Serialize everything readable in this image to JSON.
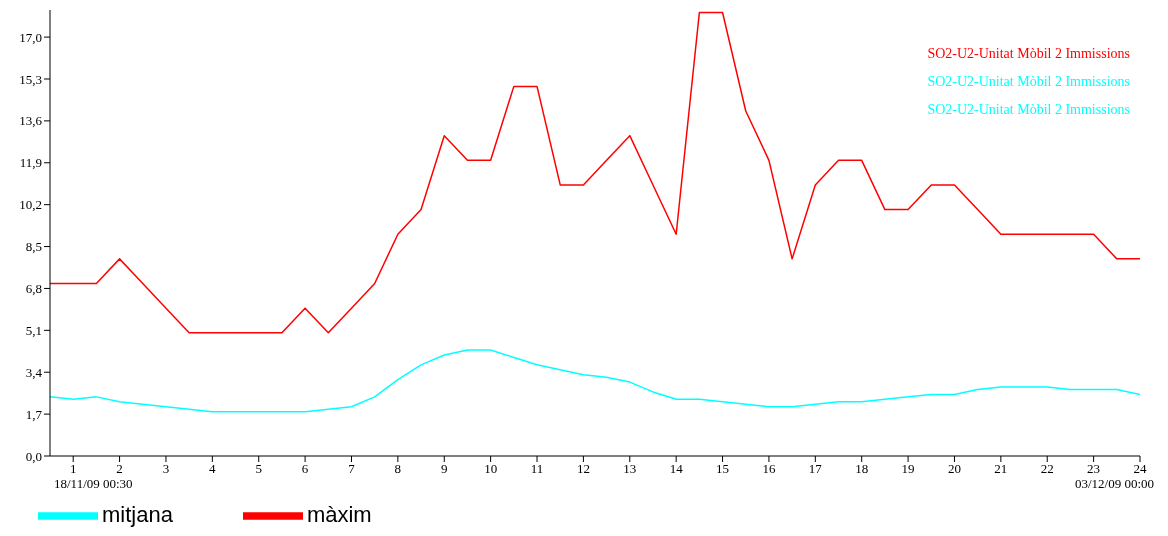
{
  "chart_data": {
    "type": "line",
    "x": [
      0.5,
      1,
      1.5,
      2,
      2.5,
      3,
      3.5,
      4,
      4.5,
      5,
      5.5,
      6,
      6.5,
      7,
      7.5,
      8,
      8.5,
      9,
      9.5,
      10,
      10.5,
      11,
      11.5,
      12,
      12.5,
      13,
      13.5,
      14,
      14.5,
      15,
      15.5,
      16,
      16.5,
      17,
      17.5,
      18,
      18.5,
      19,
      19.5,
      20,
      20.5,
      21,
      21.5,
      22,
      22.5,
      23,
      23.5,
      24
    ],
    "series": [
      {
        "name": "màxim",
        "color": "#ff0000",
        "values": [
          7,
          7,
          7,
          8,
          7,
          6,
          5,
          5,
          5,
          5,
          5,
          6,
          5,
          6,
          7,
          9,
          10,
          13,
          12,
          12,
          15,
          15,
          11,
          11,
          12,
          13,
          11,
          9,
          18,
          18,
          14,
          12,
          8,
          11,
          12,
          12,
          10,
          10,
          11,
          11,
          10,
          9,
          9,
          9,
          9,
          9,
          8,
          8
        ]
      },
      {
        "name": "mitjana",
        "color": "#00ffff",
        "values": [
          2.4,
          2.3,
          2.4,
          2.2,
          2.1,
          2.0,
          1.9,
          1.8,
          1.8,
          1.8,
          1.8,
          1.8,
          1.9,
          2.0,
          2.4,
          3.1,
          3.7,
          4.1,
          4.3,
          4.3,
          4.0,
          3.7,
          3.5,
          3.3,
          3.2,
          3.0,
          2.6,
          2.3,
          2.3,
          2.2,
          2.1,
          2.0,
          2.0,
          2.1,
          2.2,
          2.2,
          2.3,
          2.4,
          2.5,
          2.5,
          2.7,
          2.8,
          2.8,
          2.8,
          2.7,
          2.7,
          2.7,
          2.5
        ]
      }
    ],
    "xlim": [
      0.5,
      24
    ],
    "xticks": [
      1,
      2,
      3,
      4,
      5,
      6,
      7,
      8,
      9,
      10,
      11,
      12,
      13,
      14,
      15,
      16,
      17,
      18,
      19,
      20,
      21,
      22,
      23,
      24
    ],
    "ylim": [
      0,
      18.1
    ],
    "yticks": [
      {
        "value": 0,
        "label": "0,0"
      },
      {
        "value": 1.7,
        "label": "1,7"
      },
      {
        "value": 3.4,
        "label": "3,4"
      },
      {
        "value": 5.1,
        "label": "5,1"
      },
      {
        "value": 6.8,
        "label": "6,8"
      },
      {
        "value": 8.5,
        "label": "8,5"
      },
      {
        "value": 10.2,
        "label": "10,2"
      },
      {
        "value": 11.9,
        "label": "11,9"
      },
      {
        "value": 13.6,
        "label": "13,6"
      },
      {
        "value": 15.3,
        "label": "15,3"
      },
      {
        "value": 17,
        "label": "17,0"
      }
    ],
    "annotations": [
      "SO2-U2-Unitat Mòbil 2 Immissions",
      "SO2-U2-Unitat Mòbil 2 Immissions",
      "SO2-U2-Unitat Mòbil 2 Immissions",
      "18/11/09 00:30",
      "03/12/09 00:00"
    ],
    "legend": "bottom left",
    "marker": "none",
    "line_style": "solid"
  }
}
